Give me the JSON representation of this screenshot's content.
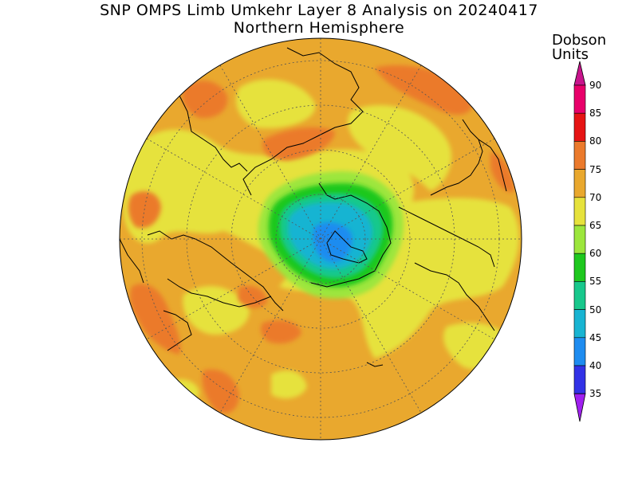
{
  "title": "SNP OMPS Limb Umkehr Layer 8 Analysis on 20240417",
  "subtitle": "Northern Hemisphere",
  "colorbar": {
    "title_line1": "Dobson",
    "title_line2": "Units",
    "levels": [
      {
        "label": "90",
        "color": "#e8006a"
      },
      {
        "label": "85",
        "color": "#e61414"
      },
      {
        "label": "80",
        "color": "#eb7a2c"
      },
      {
        "label": "75",
        "color": "#e9a82e"
      },
      {
        "label": "70",
        "color": "#e6e23c"
      },
      {
        "label": "65",
        "color": "#9ce63c"
      },
      {
        "label": "60",
        "color": "#1ec81e"
      },
      {
        "label": "55",
        "color": "#18c88c"
      },
      {
        "label": "50",
        "color": "#18b4d2"
      },
      {
        "label": "45",
        "color": "#1e8cf0"
      },
      {
        "label": "40",
        "color": "#3232e6"
      },
      {
        "label": "35",
        "color": "#7a1ee6"
      }
    ],
    "top_arrow_color": "#c8148c",
    "bottom_arrow_color": "#a020f0"
  }
}
